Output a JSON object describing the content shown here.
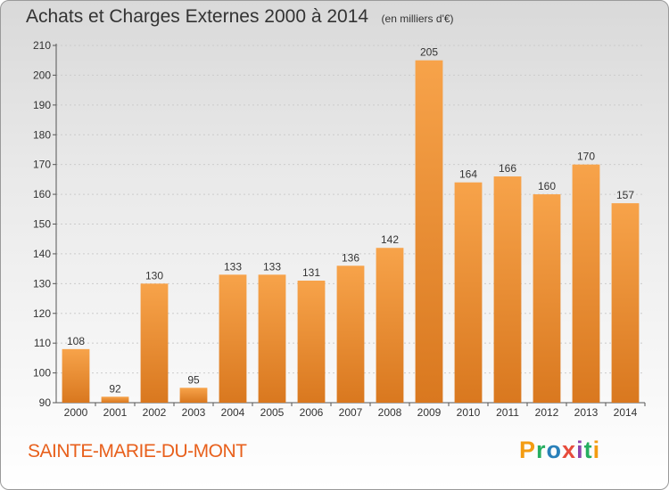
{
  "title": "Achats et Charges Externes 2000 à 2014",
  "unit": "(en milliers d'€)",
  "town": "SAINTE-MARIE-DU-MONT",
  "logo": {
    "letters": [
      "P",
      "r",
      "o",
      "x",
      "i",
      "t",
      "i"
    ],
    "colors": [
      "#f39c12",
      "#27ae60",
      "#2980b9",
      "#e74c3c",
      "#8e44ad",
      "#27ae60",
      "#f39c12"
    ]
  },
  "colors": {
    "bar_top": "#f7a34a",
    "bar_bottom": "#d9781f",
    "axis": "#555555",
    "grid": "#cccccc"
  },
  "chart_data": {
    "type": "bar",
    "categories": [
      "2000",
      "2001",
      "2002",
      "2003",
      "2004",
      "2005",
      "2006",
      "2007",
      "2008",
      "2009",
      "2010",
      "2011",
      "2012",
      "2013",
      "2014"
    ],
    "values": [
      108,
      92,
      130,
      95,
      133,
      133,
      131,
      136,
      142,
      205,
      164,
      166,
      160,
      170,
      157
    ],
    "ylim": [
      90,
      210
    ],
    "yticks": [
      90,
      100,
      110,
      120,
      130,
      140,
      150,
      160,
      170,
      180,
      190,
      200,
      210
    ],
    "grid": true,
    "data_labels": true
  }
}
